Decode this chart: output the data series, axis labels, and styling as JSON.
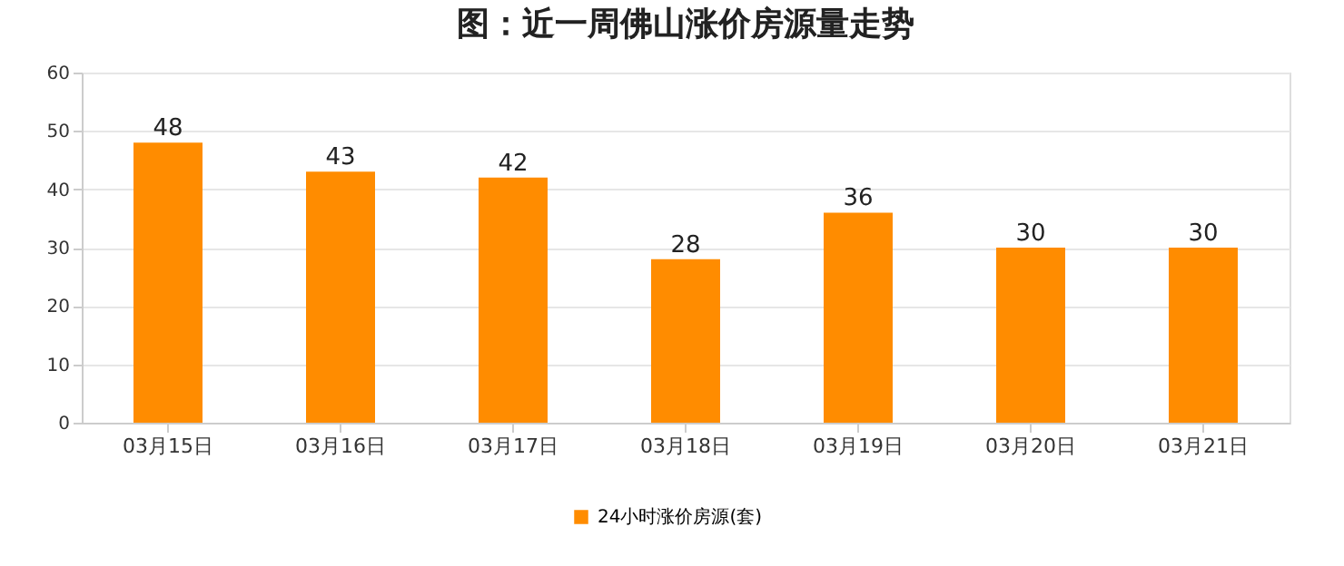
{
  "chart_data": {
    "type": "bar",
    "title": "图：近一周佛山涨价房源量走势",
    "categories": [
      "03月15日",
      "03月16日",
      "03月17日",
      "03月18日",
      "03月19日",
      "03月20日",
      "03月21日"
    ],
    "series": [
      {
        "name": "24小时涨价房源(套)",
        "color": "#ff8c00",
        "values": [
          48,
          43,
          42,
          28,
          36,
          30,
          30
        ]
      }
    ],
    "ylim": [
      0,
      60
    ],
    "yticks": [
      0,
      10,
      20,
      30,
      40,
      50,
      60
    ],
    "grid": "y",
    "legend": "bottom",
    "data_labels": true
  }
}
